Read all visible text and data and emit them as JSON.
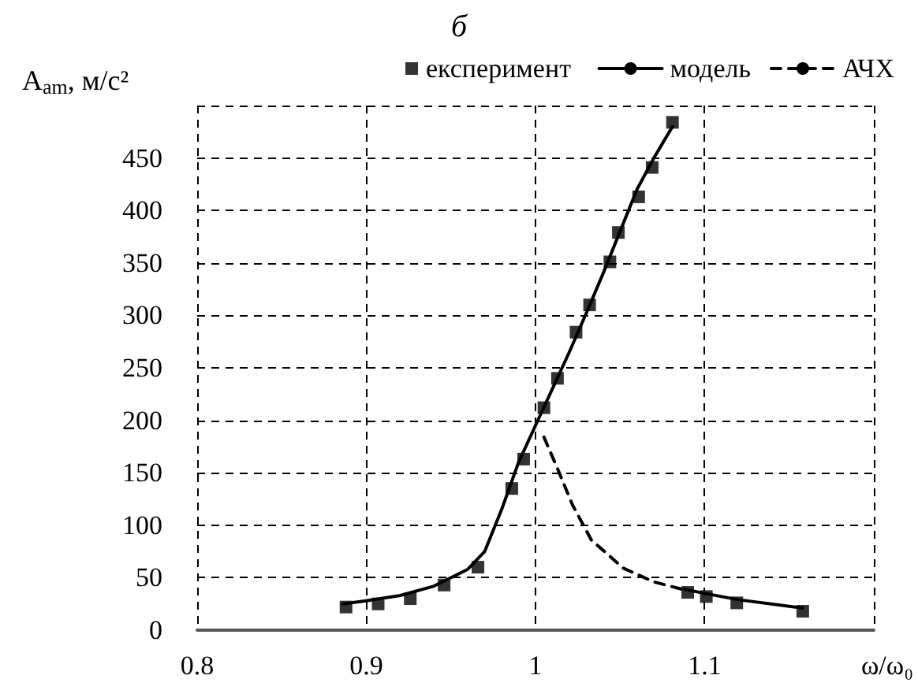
{
  "chart_data": {
    "type": "line",
    "title": "б",
    "xlabel": "ω/ω₀",
    "ylabel": "A$_{am}$, м/с²",
    "xlim": [
      0.8,
      1.2
    ],
    "xticks": [
      0.8,
      0.9,
      1,
      1.1,
      {
        "value": 1.2,
        "label": null
      }
    ],
    "ylim": [
      0,
      500
    ],
    "yticks": [
      0,
      50,
      100,
      150,
      200,
      250,
      300,
      350,
      400,
      450,
      {
        "value": 500,
        "label": null
      }
    ],
    "grid": true,
    "legend": "top right",
    "series": [
      {
        "name": "експеримент",
        "type": "scatter",
        "marker": "square",
        "color": "#000000",
        "x": [
          0.888,
          0.907,
          0.926,
          0.946,
          0.966,
          0.986,
          0.993,
          1.005,
          1.013,
          1.024,
          1.032,
          1.044,
          1.049,
          1.061,
          1.069,
          1.081,
          1.09,
          1.101,
          1.119,
          1.158
        ],
        "values": [
          22,
          25,
          30,
          43,
          60,
          135,
          163,
          212,
          240,
          284,
          310,
          351,
          379,
          413,
          441,
          484,
          36,
          32,
          26,
          18
        ]
      },
      {
        "name": "модель",
        "line_style": "solid",
        "color": "#000000",
        "x": [
          0.886,
          0.9,
          0.92,
          0.94,
          0.96,
          0.97,
          0.98,
          0.99,
          1.0,
          1.01,
          1.02,
          1.03,
          1.04,
          1.05,
          1.06,
          1.07,
          1.081,
          1.085,
          1.088,
          1.1,
          1.12,
          1.158
        ],
        "values": [
          25,
          28,
          33,
          42,
          58,
          75,
          115,
          160,
          195,
          230,
          265,
          302,
          340,
          380,
          420,
          450,
          480,
          null,
          39,
          35,
          29,
          21
        ]
      },
      {
        "name": "АЧХ",
        "line_style": "dashed",
        "color": "#000000",
        "x": [
          1.005,
          1.013,
          1.022,
          1.033,
          1.052,
          1.07,
          1.089
        ],
        "values": [
          184,
          154,
          119,
          86,
          59,
          46,
          38
        ]
      }
    ]
  }
}
